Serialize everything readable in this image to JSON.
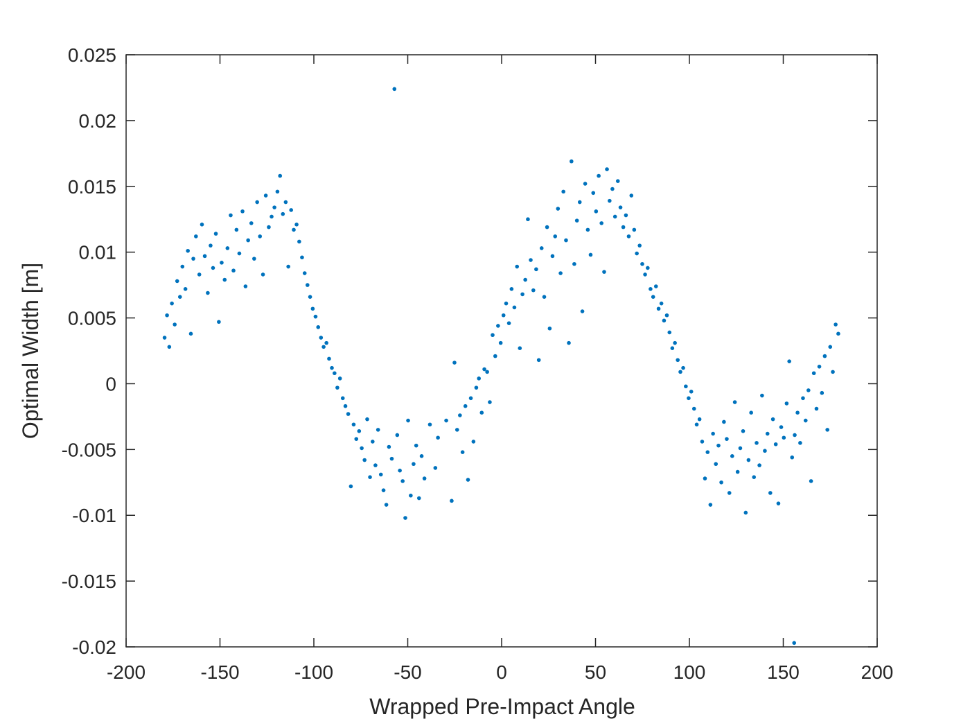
{
  "chart_data": {
    "type": "scatter",
    "xlabel": "Wrapped Pre-Impact Angle",
    "ylabel": "Optimal Width [m]",
    "color": "#0072bd",
    "xlim": [
      -200,
      200
    ],
    "xticks": [
      -200,
      -150,
      -100,
      -50,
      0,
      50,
      100,
      150,
      200
    ],
    "ylim": [
      -0.02,
      0.025
    ],
    "yticks": [
      -0.02,
      -0.015,
      -0.01,
      -0.005,
      0,
      0.005,
      0.01,
      0.015,
      0.02,
      0.025
    ],
    "x": [
      -179.5,
      -178.2,
      -177.0,
      -175.6,
      -174.1,
      -172.8,
      -171.3,
      -170.0,
      -168.4,
      -167.1,
      -165.5,
      -164.2,
      -162.8,
      -161.0,
      -159.6,
      -158.1,
      -156.5,
      -155.0,
      -153.7,
      -152.2,
      -150.6,
      -149.1,
      -147.5,
      -146.0,
      -144.3,
      -142.8,
      -141.2,
      -139.7,
      -138.0,
      -136.4,
      -135.0,
      -133.3,
      -131.8,
      -130.2,
      -128.7,
      -127.1,
      -125.6,
      -124.0,
      -122.5,
      -121.0,
      -119.4,
      -118.0,
      -116.5,
      -115.0,
      -113.6,
      -112.1,
      -110.7,
      -109.2,
      -107.8,
      -106.3,
      -104.9,
      -103.4,
      -102.0,
      -100.6,
      -99.1,
      -97.7,
      -96.2,
      -94.8,
      -93.3,
      -91.9,
      -90.4,
      -89.0,
      -87.5,
      -86.1,
      -84.6,
      -83.2,
      -81.7,
      -80.3,
      -78.8,
      -77.4,
      -75.9,
      -74.5,
      -73.0,
      -71.6,
      -70.1,
      -68.7,
      -67.2,
      -65.8,
      -64.3,
      -62.9,
      -61.4,
      -60.0,
      -58.5,
      -57.1,
      -55.6,
      -54.2,
      -52.7,
      -51.3,
      -49.8,
      -48.4,
      -46.9,
      -45.5,
      -44.0,
      -42.6,
      -41.1,
      -38.2,
      -35.3,
      -33.9,
      -29.5,
      -26.6,
      -25.1,
      -23.7,
      -22.2,
      -20.8,
      -19.3,
      -17.9,
      -16.4,
      -15.0,
      -13.5,
      -12.1,
      -10.6,
      -9.2,
      -7.7,
      -6.3,
      -4.8,
      -3.4,
      -1.9,
      -0.5,
      1.0,
      2.4,
      3.9,
      5.3,
      6.8,
      8.2,
      9.7,
      11.1,
      12.6,
      14.0,
      15.5,
      16.9,
      18.4,
      19.8,
      21.3,
      22.7,
      24.2,
      25.6,
      27.1,
      28.5,
      30.0,
      31.4,
      32.9,
      34.3,
      35.8,
      37.2,
      38.7,
      40.1,
      41.6,
      43.0,
      44.5,
      45.9,
      47.4,
      48.8,
      50.3,
      51.7,
      53.2,
      54.6,
      56.1,
      57.5,
      59.0,
      60.4,
      61.9,
      63.3,
      64.8,
      66.2,
      67.7,
      69.1,
      70.6,
      72.0,
      73.5,
      74.9,
      76.4,
      77.8,
      79.3,
      80.7,
      82.2,
      83.6,
      85.1,
      86.5,
      88.0,
      89.4,
      90.9,
      92.3,
      93.8,
      95.2,
      96.7,
      98.1,
      99.6,
      101.0,
      102.5,
      103.9,
      105.4,
      106.8,
      108.3,
      109.7,
      111.2,
      112.6,
      114.1,
      115.5,
      117.0,
      118.4,
      119.9,
      121.3,
      122.8,
      124.2,
      125.7,
      127.1,
      128.6,
      130.0,
      131.5,
      132.9,
      134.4,
      135.8,
      137.3,
      138.7,
      140.2,
      141.6,
      143.1,
      144.5,
      146.0,
      147.4,
      148.9,
      150.3,
      151.8,
      153.2,
      154.7,
      155.8,
      156.1,
      157.6,
      159.0,
      160.5,
      161.9,
      163.4,
      164.8,
      166.3,
      167.7,
      169.2,
      170.6,
      172.1,
      173.5,
      175.0,
      176.4,
      177.9,
      179.3
    ],
    "values": [
      0.0035,
      0.0052,
      0.0028,
      0.0061,
      0.0045,
      0.0078,
      0.0066,
      0.0089,
      0.0072,
      0.0101,
      0.0038,
      0.0095,
      0.0112,
      0.0083,
      0.0121,
      0.0097,
      0.0069,
      0.0105,
      0.0088,
      0.0114,
      0.0047,
      0.0092,
      0.0079,
      0.0103,
      0.0128,
      0.0086,
      0.0117,
      0.0099,
      0.0131,
      0.0074,
      0.0109,
      0.0122,
      0.0095,
      0.0138,
      0.0112,
      0.0083,
      0.0143,
      0.0119,
      0.0127,
      0.0134,
      0.0146,
      0.0158,
      0.0129,
      0.0138,
      0.0089,
      0.0132,
      0.0117,
      0.0121,
      0.0108,
      0.0096,
      0.0084,
      0.0075,
      0.0066,
      0.0057,
      0.0051,
      0.0043,
      0.0035,
      0.0028,
      0.0031,
      0.0019,
      0.0012,
      0.0008,
      -0.0003,
      0.0004,
      -0.0011,
      -0.0017,
      -0.0023,
      -0.0078,
      -0.0031,
      -0.0042,
      -0.0036,
      -0.0049,
      -0.0058,
      -0.0027,
      -0.0071,
      -0.0044,
      -0.0062,
      -0.0035,
      -0.0069,
      -0.0081,
      -0.0092,
      -0.0048,
      -0.0057,
      0.0224,
      -0.0039,
      -0.0066,
      -0.0074,
      -0.0102,
      -0.0028,
      -0.0085,
      -0.0061,
      -0.0047,
      -0.0087,
      -0.0055,
      -0.0072,
      -0.0031,
      -0.0064,
      -0.0041,
      -0.0028,
      -0.0089,
      0.0016,
      -0.0035,
      -0.0024,
      -0.0052,
      -0.0017,
      -0.0073,
      -0.0011,
      -0.0044,
      -0.0003,
      0.0004,
      -0.0022,
      0.0011,
      0.0009,
      -0.0014,
      0.0037,
      0.0021,
      0.0044,
      0.0031,
      0.0052,
      0.0061,
      0.0046,
      0.0072,
      0.0058,
      0.0089,
      0.0027,
      0.0068,
      0.0079,
      0.0125,
      0.0094,
      0.0071,
      0.0087,
      0.0018,
      0.0103,
      0.0066,
      0.0119,
      0.0042,
      0.0097,
      0.0112,
      0.0133,
      0.0084,
      0.0146,
      0.0109,
      0.0031,
      0.0169,
      0.0091,
      0.0124,
      0.0138,
      0.0055,
      0.0152,
      0.0117,
      0.0098,
      0.0145,
      0.0131,
      0.0158,
      0.0122,
      0.0085,
      0.0163,
      0.0139,
      0.0148,
      0.0127,
      0.0154,
      0.0134,
      0.0119,
      0.0128,
      0.0112,
      0.0143,
      0.0117,
      0.0099,
      0.0105,
      0.0091,
      0.0083,
      0.0088,
      0.0072,
      0.0066,
      0.0074,
      0.0057,
      0.0061,
      0.0048,
      0.0052,
      0.0039,
      0.0027,
      0.0031,
      0.0018,
      0.0009,
      0.0012,
      -0.0002,
      -0.0011,
      -0.0006,
      -0.0019,
      -0.0031,
      -0.0027,
      -0.0044,
      -0.0072,
      -0.0052,
      -0.0092,
      -0.0038,
      -0.0061,
      -0.0047,
      -0.0075,
      -0.0029,
      -0.0042,
      -0.0083,
      -0.0055,
      -0.0014,
      -0.0067,
      -0.0049,
      -0.0036,
      -0.0098,
      -0.0058,
      -0.0022,
      -0.0071,
      -0.0045,
      -0.0062,
      -0.0009,
      -0.0051,
      -0.0038,
      -0.0083,
      -0.0027,
      -0.0046,
      -0.0091,
      -0.0033,
      -0.0041,
      -0.0015,
      0.0017,
      -0.0056,
      -0.0197,
      -0.0039,
      -0.0022,
      -0.0045,
      -0.0011,
      -0.0028,
      -0.0005,
      -0.0074,
      0.0008,
      -0.0019,
      0.0013,
      -0.0007,
      0.0021,
      -0.0035,
      0.0028,
      0.0009,
      0.0045,
      0.0038
    ]
  }
}
